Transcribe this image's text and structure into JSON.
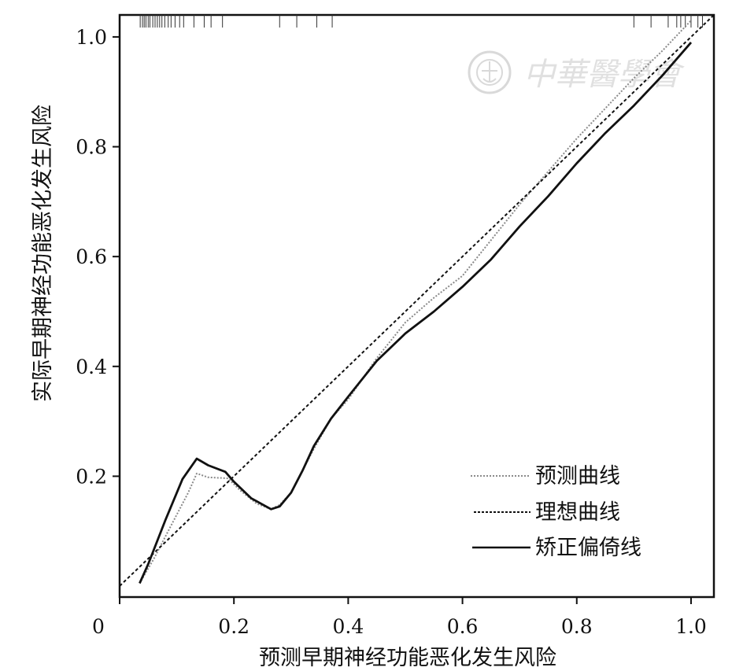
{
  "chart_data": {
    "type": "line",
    "xlabel": "预测早期神经功能恶化发生风险",
    "ylabel": "实际早期神经功能恶化发生风险",
    "xlim": [
      0,
      1.04
    ],
    "ylim": [
      -0.02,
      1.04
    ],
    "x_ticks": [
      0,
      0.2,
      0.4,
      0.6,
      0.8,
      1.0
    ],
    "x_tick_labels": [
      "0",
      "0.2",
      "0.4",
      "0.6",
      "0.8",
      "1.0"
    ],
    "y_ticks": [
      0.2,
      0.4,
      0.6,
      0.8,
      1.0
    ],
    "y_tick_labels": [
      "0.2",
      "0.4",
      "0.6",
      "0.8",
      "1.0"
    ],
    "grid": false,
    "legend_position": "bottom-right",
    "series": [
      {
        "name": "预测曲线",
        "style": "dotted",
        "color": "#8a8a8a",
        "x": [
          0.035,
          0.06,
          0.09,
          0.12,
          0.135,
          0.155,
          0.175,
          0.19,
          0.21,
          0.24,
          0.265,
          0.28,
          0.3,
          0.32,
          0.34,
          0.37,
          0.4,
          0.45,
          0.5,
          0.55,
          0.6,
          0.65,
          0.7,
          0.75,
          0.8,
          0.85,
          0.9,
          0.95,
          1.0
        ],
        "y": [
          0.005,
          0.05,
          0.11,
          0.17,
          0.205,
          0.198,
          0.197,
          0.196,
          0.175,
          0.15,
          0.14,
          0.148,
          0.17,
          0.21,
          0.25,
          0.305,
          0.34,
          0.415,
          0.48,
          0.525,
          0.565,
          0.63,
          0.695,
          0.755,
          0.815,
          0.87,
          0.925,
          0.975,
          1.03
        ]
      },
      {
        "name": "理想曲线",
        "style": "dashed",
        "color": "#111111",
        "x": [
          0,
          1.04
        ],
        "y": [
          0,
          1.04
        ]
      },
      {
        "name": "矫正偏倚线",
        "style": "solid",
        "color": "#111111",
        "x": [
          0.035,
          0.05,
          0.08,
          0.11,
          0.135,
          0.155,
          0.185,
          0.2,
          0.23,
          0.265,
          0.28,
          0.3,
          0.32,
          0.34,
          0.37,
          0.4,
          0.45,
          0.5,
          0.55,
          0.6,
          0.65,
          0.7,
          0.75,
          0.8,
          0.85,
          0.9,
          0.95,
          1.0
        ],
        "y": [
          0.005,
          0.04,
          0.12,
          0.195,
          0.232,
          0.22,
          0.208,
          0.19,
          0.16,
          0.14,
          0.145,
          0.17,
          0.21,
          0.255,
          0.305,
          0.345,
          0.41,
          0.46,
          0.5,
          0.545,
          0.595,
          0.655,
          0.71,
          0.77,
          0.825,
          0.875,
          0.93,
          0.99
        ]
      }
    ],
    "rug_x": [
      0.036,
      0.04,
      0.043,
      0.046,
      0.05,
      0.053,
      0.058,
      0.062,
      0.066,
      0.07,
      0.074,
      0.079,
      0.085,
      0.09,
      0.097,
      0.105,
      0.112,
      0.13,
      0.148,
      0.16,
      0.18,
      0.28,
      0.31,
      0.345,
      0.372,
      0.9,
      0.93,
      0.96,
      0.975,
      0.982,
      0.99,
      1.0,
      1.012,
      1.02
    ]
  },
  "watermark": {
    "text": "中華醫學會"
  }
}
